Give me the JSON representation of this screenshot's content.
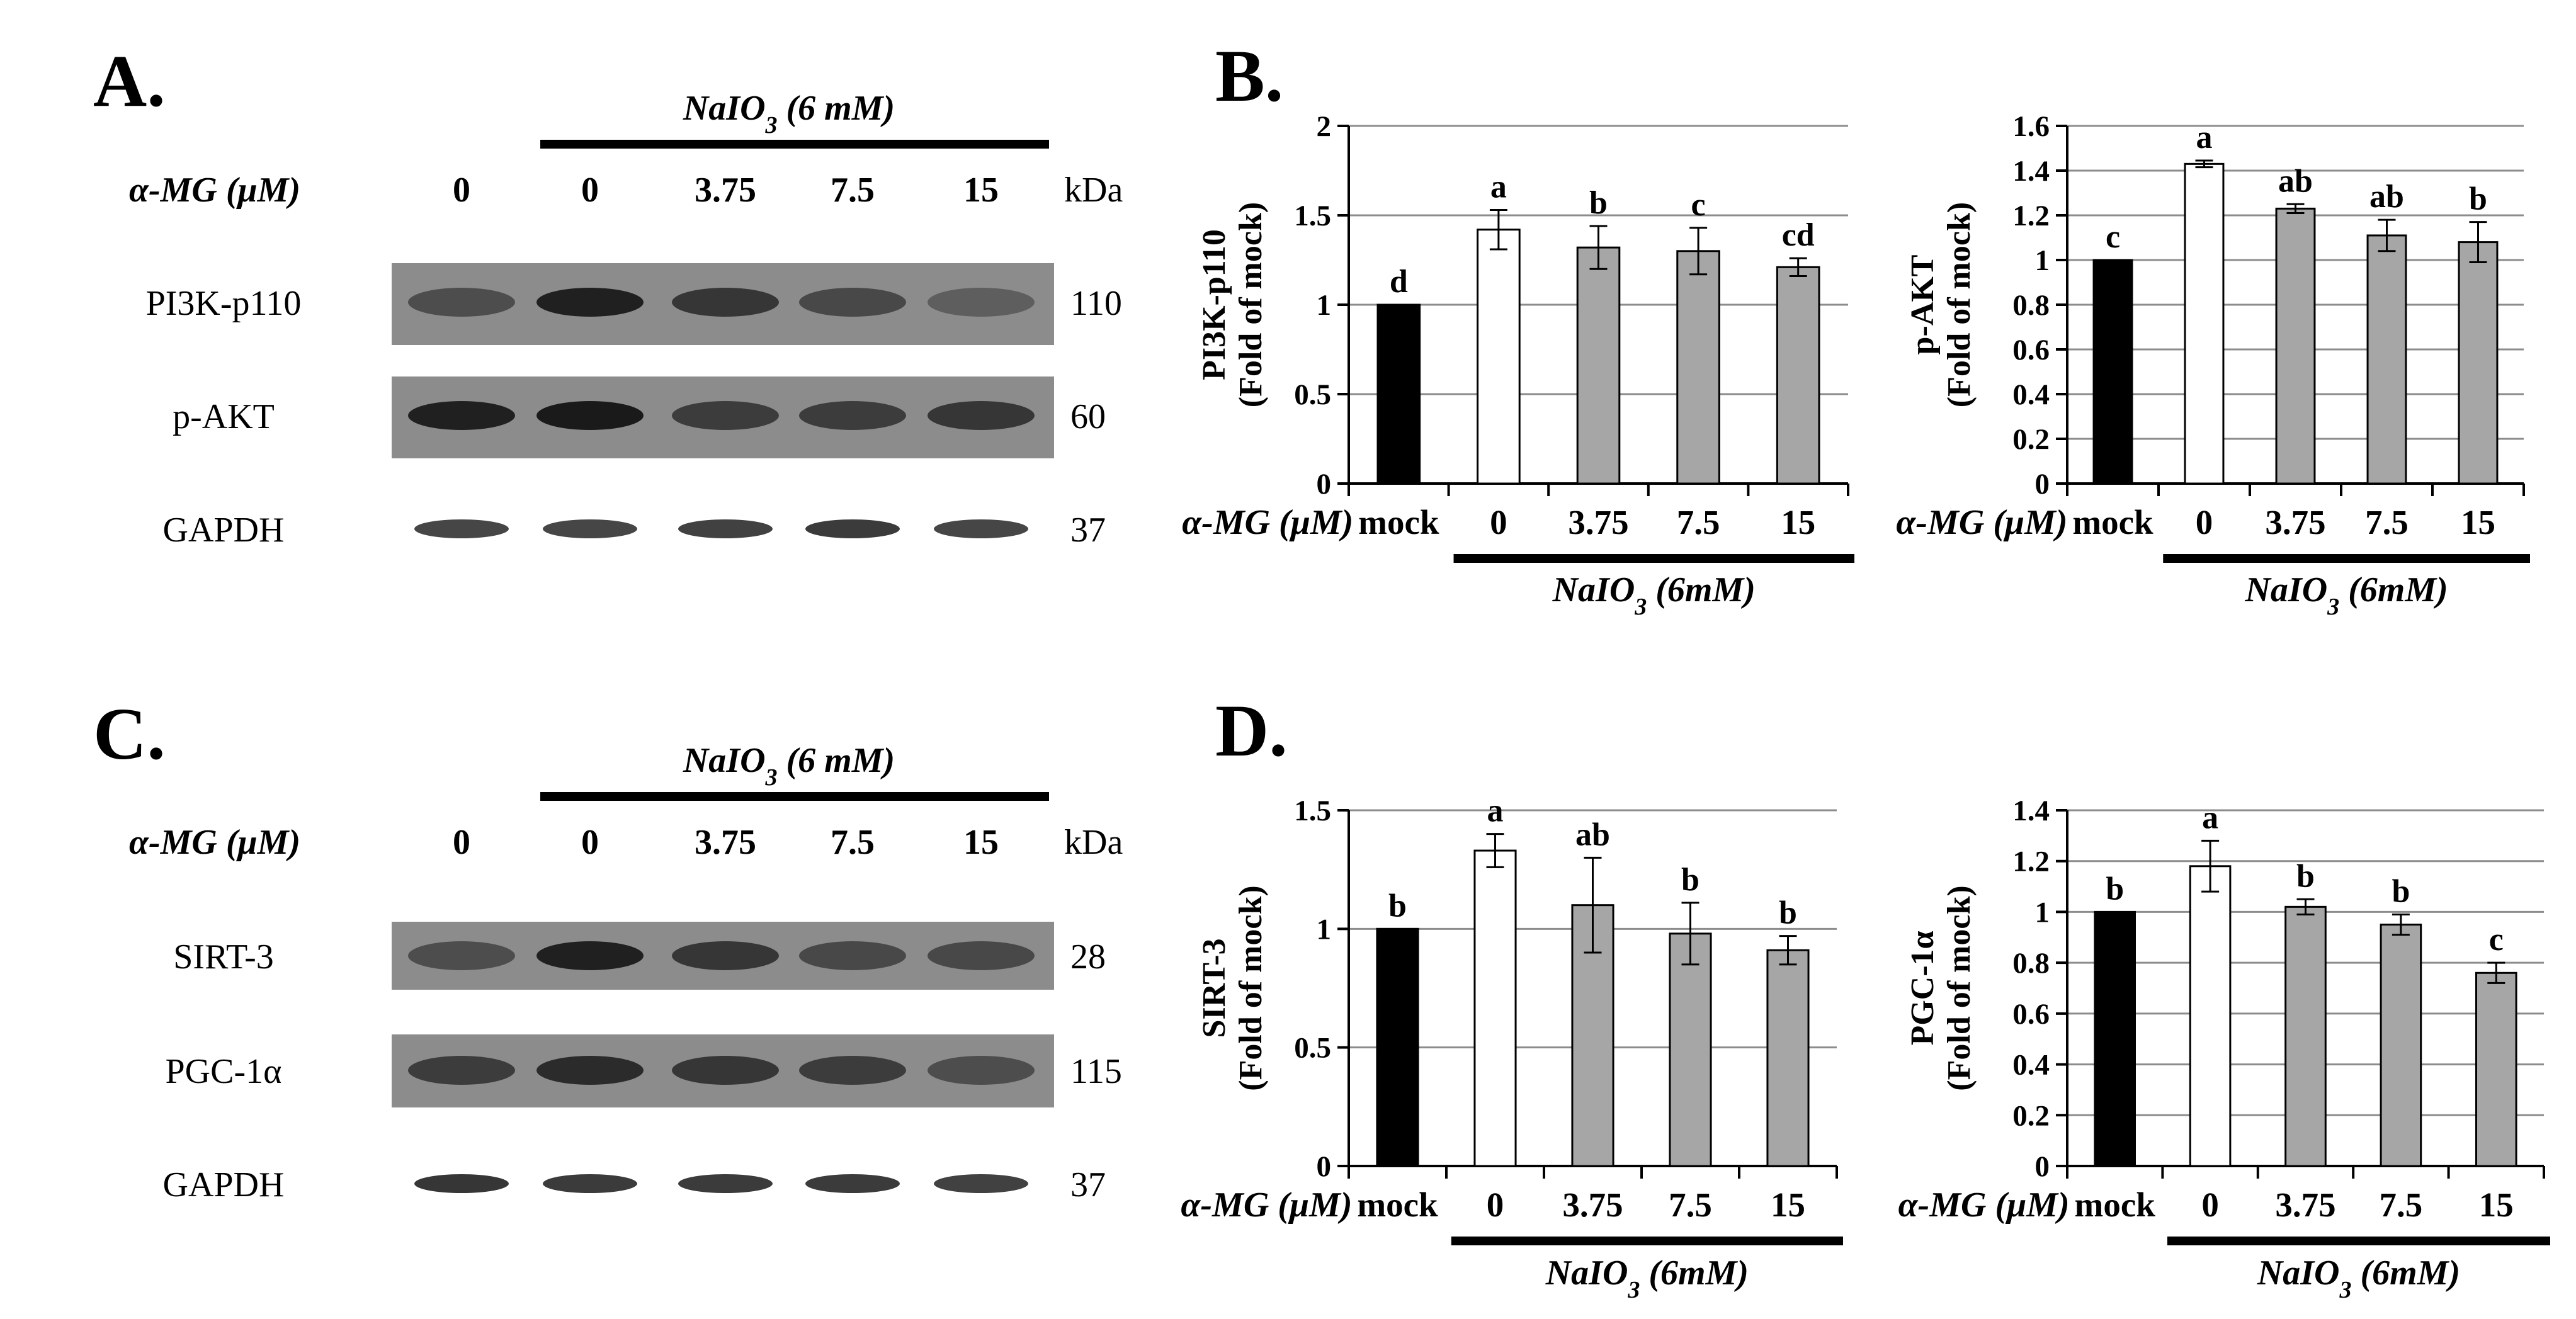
{
  "panel_labels": {
    "a": "A.",
    "b": "B.",
    "c": "C.",
    "d": "D."
  },
  "blots": [
    {
      "treatment_label": "NaIO3 (6 mM)",
      "amg_label": "α-MG (μM)",
      "lane_labels": [
        "0",
        "0",
        "3.75",
        "7.5",
        "15"
      ],
      "kda_label": "kDa",
      "rows": [
        {
          "protein": "PI3K-p110",
          "kda": "110",
          "band_intensity": [
            0.55,
            0.95,
            0.75,
            0.6,
            0.4
          ]
        },
        {
          "protein": "p-AKT",
          "kda": "60",
          "band_intensity": [
            0.95,
            1.0,
            0.7,
            0.7,
            0.75
          ]
        },
        {
          "protein": "GAPDH",
          "kda": "37",
          "band_intensity": [
            0.75,
            0.75,
            0.8,
            0.85,
            0.75
          ]
        }
      ]
    },
    {
      "treatment_label": "NaIO3 (6 mM)",
      "amg_label": "α-MG (μM)",
      "lane_labels": [
        "0",
        "0",
        "3.75",
        "7.5",
        "15"
      ],
      "kda_label": "kDa",
      "rows": [
        {
          "protein": "SIRT-3",
          "kda": "28",
          "band_intensity": [
            0.55,
            0.95,
            0.75,
            0.6,
            0.6
          ]
        },
        {
          "protein": "PGC-1α",
          "kda": "115",
          "band_intensity": [
            0.7,
            0.85,
            0.75,
            0.7,
            0.55
          ]
        },
        {
          "protein": "GAPDH",
          "kda": "37",
          "band_intensity": [
            0.9,
            0.85,
            0.85,
            0.85,
            0.8
          ]
        }
      ]
    }
  ],
  "bar_colors": [
    "#000000",
    "#ffffff",
    "#a6a6a6",
    "#a6a6a6",
    "#a6a6a6"
  ],
  "chart_data": [
    {
      "type": "bar",
      "categories": [
        "mock",
        "0",
        "3.75",
        "7.5",
        "15"
      ],
      "values": [
        1.0,
        1.42,
        1.32,
        1.3,
        1.21
      ],
      "errors": [
        0,
        0.11,
        0.12,
        0.13,
        0.05
      ],
      "significance": [
        "d",
        "a",
        "b",
        "c",
        "cd"
      ],
      "ylabel_lines": [
        "PI3K-p110",
        "(Fold of mock)"
      ],
      "ylim": [
        0,
        2
      ],
      "yticks": [
        "0",
        "0.5",
        "1",
        "1.5",
        "2"
      ],
      "x_prefix": "α-MG (μM)",
      "treatment_label": "NaIO3 (6mM)",
      "grid": true
    },
    {
      "type": "bar",
      "categories": [
        "mock",
        "0",
        "3.75",
        "7.5",
        "15"
      ],
      "values": [
        1.0,
        1.43,
        1.23,
        1.11,
        1.08
      ],
      "errors": [
        0,
        0.015,
        0.02,
        0.07,
        0.09
      ],
      "significance": [
        "c",
        "a",
        "ab",
        "ab",
        "b"
      ],
      "ylabel_lines": [
        "p-AKT",
        "(Fold of mock)"
      ],
      "ylim": [
        0,
        1.6
      ],
      "yticks": [
        "0",
        "0.2",
        "0.4",
        "0.6",
        "0.8",
        "1",
        "1.2",
        "1.4",
        "1.6"
      ],
      "x_prefix": "α-MG (μM)",
      "treatment_label": "NaIO3 (6mM)",
      "grid": true
    },
    {
      "type": "bar",
      "categories": [
        "mock",
        "0",
        "3.75",
        "7.5",
        "15"
      ],
      "values": [
        1.0,
        1.33,
        1.1,
        0.98,
        0.91
      ],
      "errors": [
        0,
        0.07,
        0.2,
        0.13,
        0.06
      ],
      "significance": [
        "b",
        "a",
        "ab",
        "b",
        "b"
      ],
      "ylabel_lines": [
        "SIRT-3",
        "(Fold of mock)"
      ],
      "ylim": [
        0,
        1.5
      ],
      "yticks": [
        "0",
        "0.5",
        "1",
        "1.5"
      ],
      "x_prefix": "α-MG (μM)",
      "treatment_label": "NaIO3 (6mM)",
      "grid": true
    },
    {
      "type": "bar",
      "categories": [
        "mock",
        "0",
        "3.75",
        "7.5",
        "15"
      ],
      "values": [
        1.0,
        1.18,
        1.02,
        0.95,
        0.76
      ],
      "errors": [
        0,
        0.1,
        0.03,
        0.04,
        0.04
      ],
      "significance": [
        "b",
        "a",
        "b",
        "b",
        "c"
      ],
      "ylabel_lines": [
        "PGC-1α",
        "(Fold of mock)"
      ],
      "ylim": [
        0,
        1.4
      ],
      "yticks": [
        "0",
        "0.2",
        "0.4",
        "0.6",
        "0.8",
        "1",
        "1.2",
        "1.4"
      ],
      "x_prefix": "α-MG (μM)",
      "treatment_label": "NaIO3 (6mM)",
      "grid": true
    }
  ]
}
